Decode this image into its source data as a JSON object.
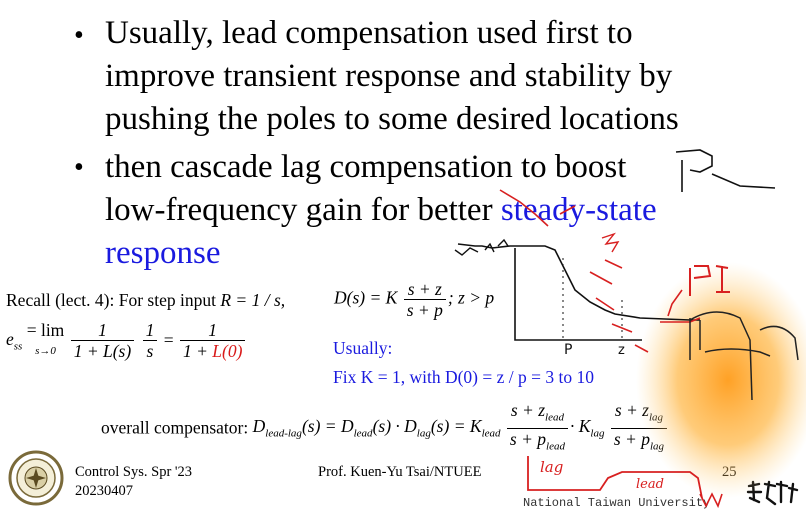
{
  "bullets": [
    {
      "lines": [
        "Usually, lead compensation used first to",
        "improve transient response and stability by",
        "pushing the poles to some desired locations"
      ]
    },
    {
      "lines": [
        "then cascade lag compensation to boost",
        "low-frequency gain for better "
      ],
      "highlight": "steady-state",
      "highlight2": "response"
    }
  ],
  "recall": {
    "prefix": "Recall (lect. 4): For step input ",
    "input": "R = 1 / s,",
    "D_lhs": "D(s) = K",
    "D_num": "s + z",
    "D_den": "s + p",
    "D_cond": "; z > p",
    "ess_lhs": "e",
    "ess_sub": "ss",
    "ess_lim": "= lim",
    "ess_lim_sub": "s→0",
    "f1_num": "1",
    "f1_den": "1 + L(s)",
    "f2_num": "1",
    "f2_den": "s",
    "f3_num": "1",
    "f3_den_a": "1 + ",
    "f3_den_b": "L(0)"
  },
  "usually": {
    "line1": "Usually:",
    "line2": "Fix K = 1,  with D(0) = z / p = 3 to 10"
  },
  "overall": {
    "label": "overall compensator: ",
    "eq1": "D",
    "eq1_sub": "lead-lag",
    "eq2": "(s) = D",
    "eq2_sub": "lead",
    "eq3": "(s) · D",
    "eq3_sub": "lag",
    "eq4": "(s) = K",
    "eq4_sub": "lead",
    "lead_num": "s + z",
    "lead_num_sub": "lead",
    "lead_den": "s + p",
    "lead_den_sub": "lead",
    "dot": "· K",
    "klag_sub": "lag",
    "lag_num": "s + z",
    "lag_num_sub": "lag",
    "lag_den": "s + p",
    "lag_den_sub": "lag"
  },
  "footer": {
    "course": "Control Sys. Spr '23",
    "date": "20230407",
    "author": "Prof. Kuen-Yu Tsai/NTUEE",
    "page": "25",
    "university": "National Taiwan University"
  },
  "annotations": {
    "p_label": "P",
    "z_label": "z",
    "pi_label": "PI",
    "lag_label": "lag",
    "lead_label": "lead"
  }
}
